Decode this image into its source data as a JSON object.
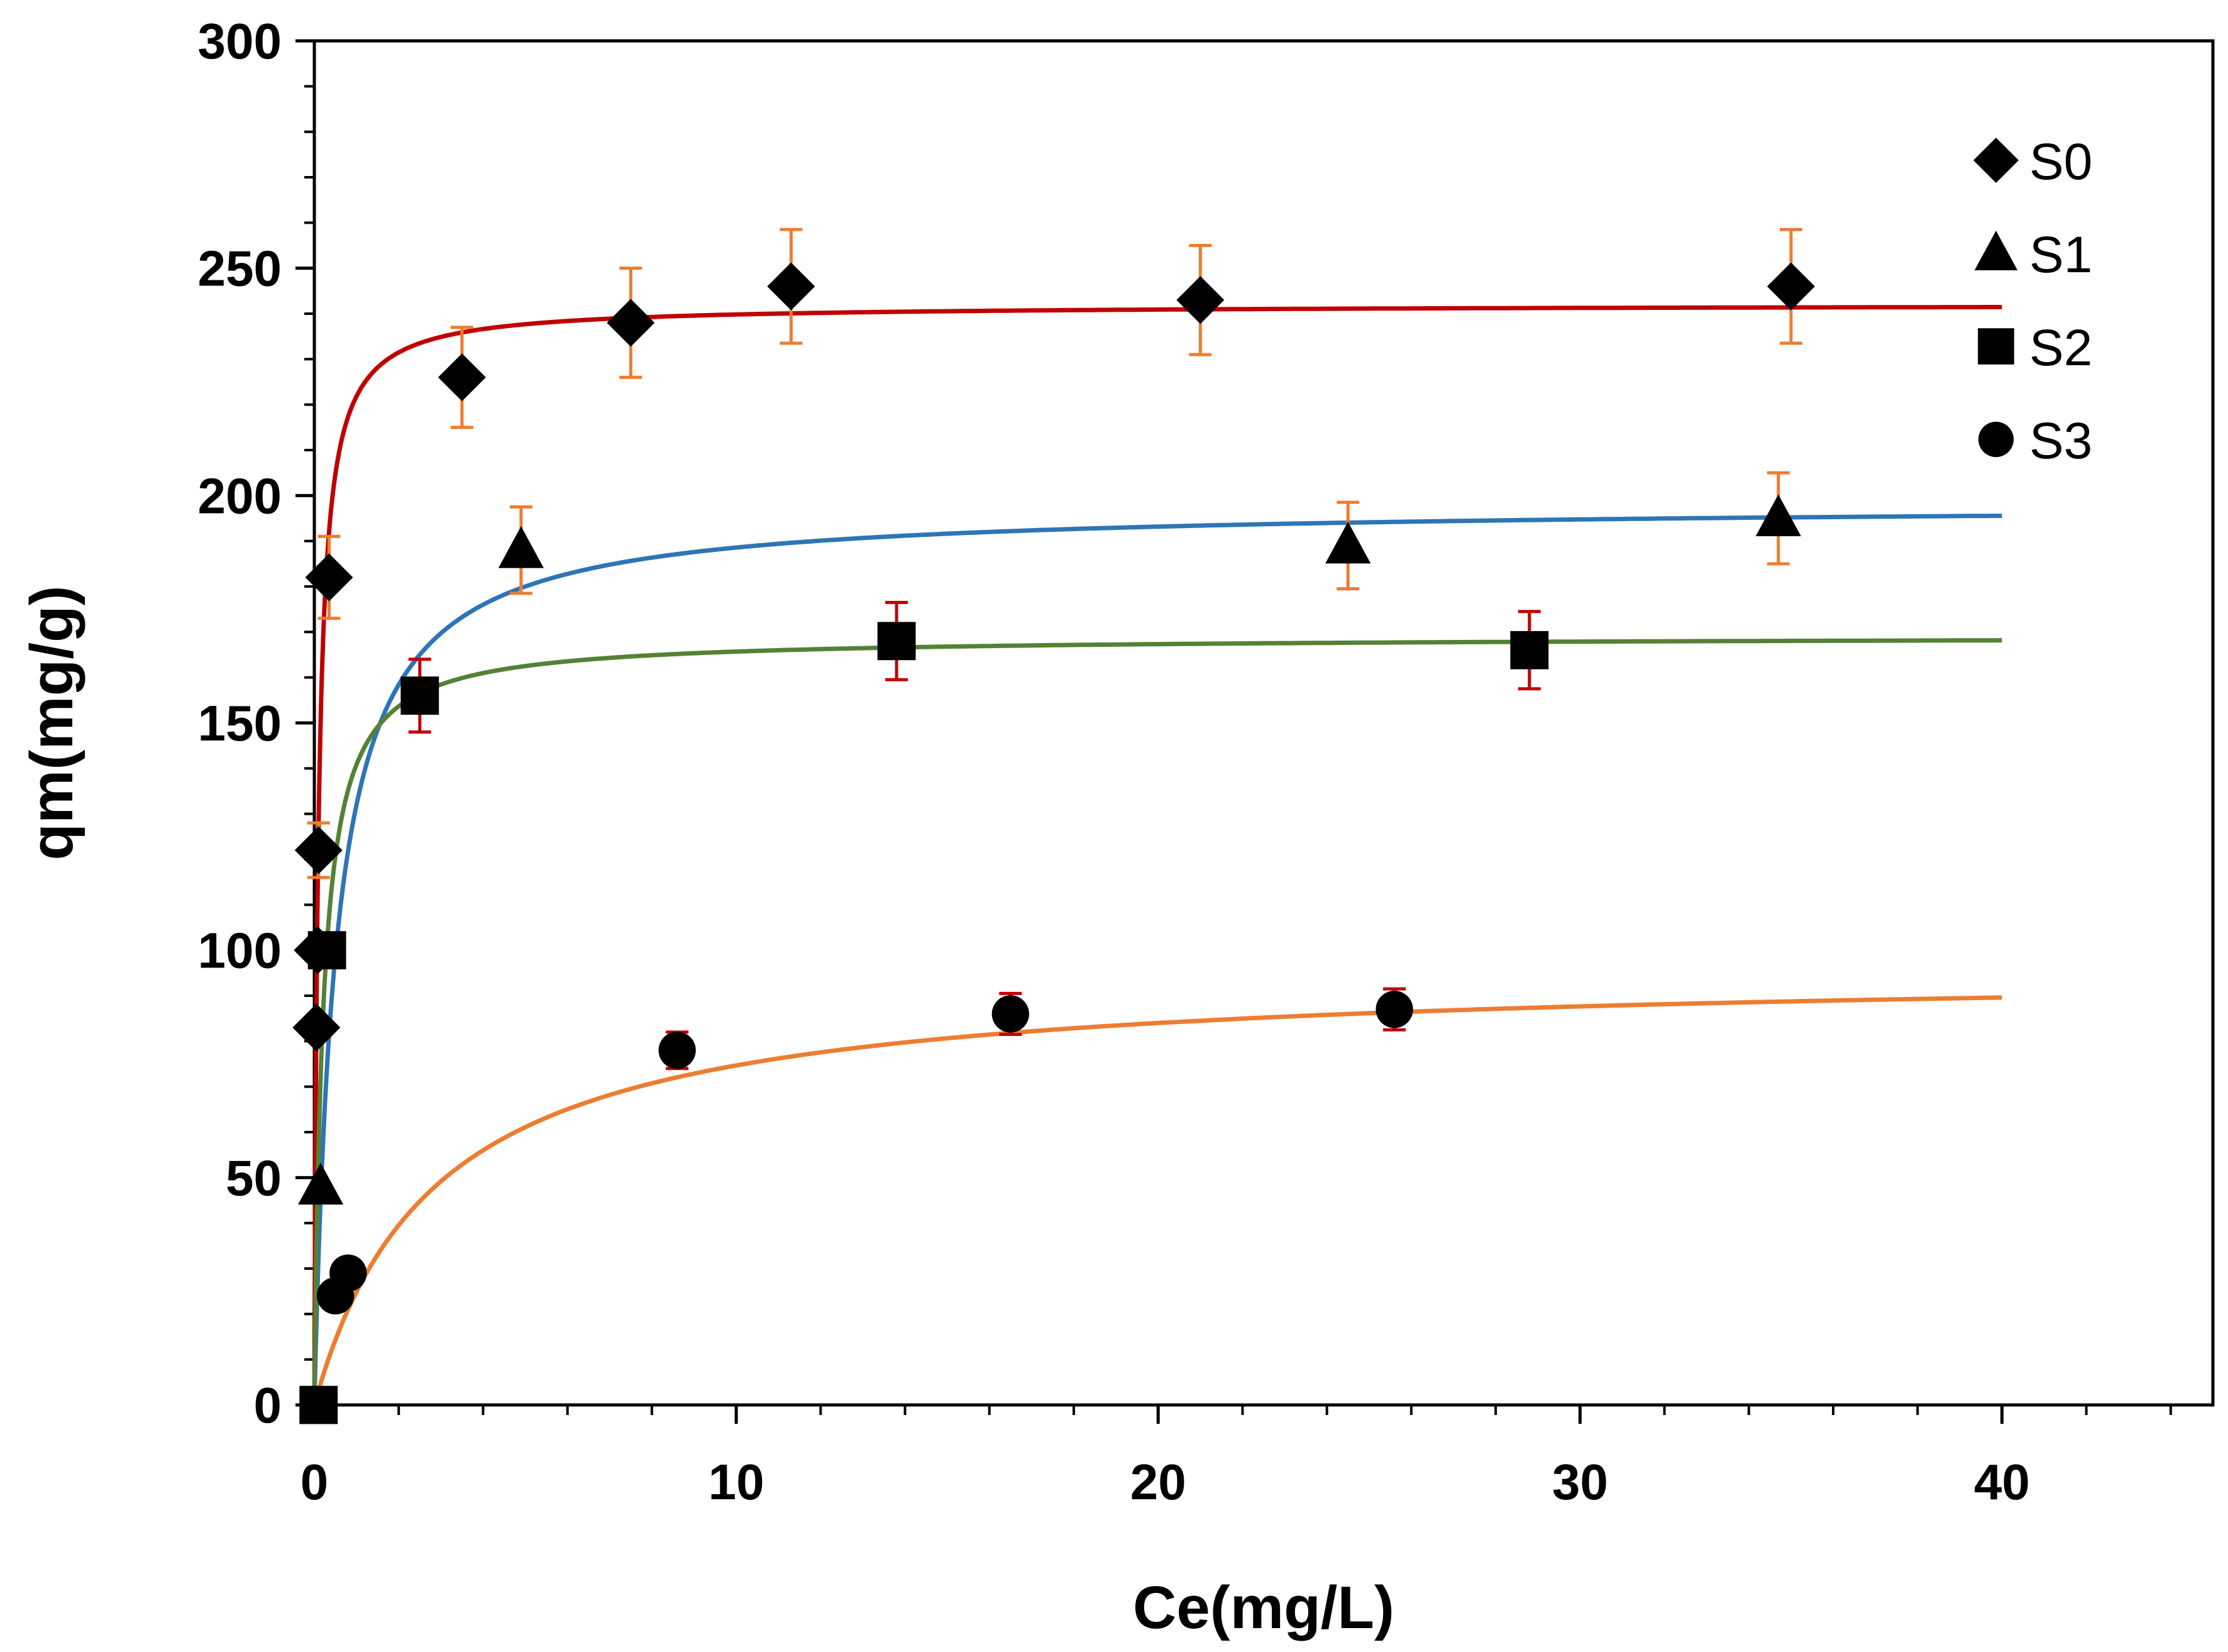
{
  "chart_data": {
    "type": "scatter",
    "title": "",
    "xlabel": "Ce(mg/L)",
    "ylabel": "qm(mg/g)",
    "xlim": [
      0,
      45
    ],
    "ylim": [
      0,
      300
    ],
    "x_ticks": [
      0,
      10,
      20,
      30,
      40
    ],
    "y_ticks": [
      0,
      50,
      100,
      150,
      200,
      250,
      300
    ],
    "x_tick_labels": [
      "0",
      "10",
      "20",
      "30",
      "40"
    ],
    "y_tick_labels": [
      "0",
      "50",
      "100",
      "150",
      "200",
      "250",
      "300"
    ],
    "grid": false,
    "legend_position": "top-right",
    "series": [
      {
        "name": "S0",
        "marker": "diamond",
        "points": [
          {
            "x": 0.05,
            "y": 83,
            "err": 0
          },
          {
            "x": 0.08,
            "y": 100,
            "err": 0
          },
          {
            "x": 0.1,
            "y": 122,
            "err": 6
          },
          {
            "x": 0.35,
            "y": 182,
            "err": 9
          },
          {
            "x": 3.5,
            "y": 226,
            "err": 11
          },
          {
            "x": 7.5,
            "y": 238,
            "err": 12
          },
          {
            "x": 11.3,
            "y": 246,
            "err": 12.5
          },
          {
            "x": 21.0,
            "y": 243,
            "err": 12
          },
          {
            "x": 35.0,
            "y": 246,
            "err": 12.5
          }
        ],
        "fit": {
          "model": "langmuir",
          "qmax": 242,
          "K": 11.0,
          "x_range": [
            0,
            40
          ]
        },
        "fit_color": "#c00000",
        "error_color": "#ed7d31"
      },
      {
        "name": "S1",
        "marker": "triangle",
        "points": [
          {
            "x": 0.15,
            "y": 48,
            "err": 0
          },
          {
            "x": 4.9,
            "y": 188,
            "err": 9.5
          },
          {
            "x": 24.5,
            "y": 189,
            "err": 9.5
          },
          {
            "x": 34.7,
            "y": 195,
            "err": 10
          }
        ],
        "fit": {
          "model": "langmuir",
          "qmax": 198,
          "K": 2.0,
          "x_range": [
            0,
            40
          ]
        },
        "fit_color": "#2e75b6",
        "error_color": "#ed7d31"
      },
      {
        "name": "S2",
        "marker": "square",
        "points": [
          {
            "x": 0.1,
            "y": 0,
            "err": 0
          },
          {
            "x": 0.3,
            "y": 100,
            "err": 0
          },
          {
            "x": 2.5,
            "y": 156,
            "err": 8
          },
          {
            "x": 13.8,
            "y": 168,
            "err": 8.5
          },
          {
            "x": 28.8,
            "y": 166,
            "err": 8.5
          }
        ],
        "fit": {
          "model": "langmuir",
          "qmax": 169,
          "K": 5.0,
          "x_range": [
            0,
            40
          ]
        },
        "fit_color": "#548235",
        "error_color": "#c00000"
      },
      {
        "name": "S3",
        "marker": "circle",
        "points": [
          {
            "x": 0.5,
            "y": 24,
            "err": 0
          },
          {
            "x": 0.8,
            "y": 29,
            "err": 0
          },
          {
            "x": 8.6,
            "y": 78,
            "err": 4
          },
          {
            "x": 16.5,
            "y": 86,
            "err": 4.5
          },
          {
            "x": 25.6,
            "y": 87,
            "err": 4.5
          }
        ],
        "fit": {
          "model": "langmuir",
          "qmax": 96,
          "K": 0.35,
          "x_range": [
            0,
            40
          ]
        },
        "fit_color": "#ed7d31",
        "error_color": "#c00000"
      }
    ]
  }
}
